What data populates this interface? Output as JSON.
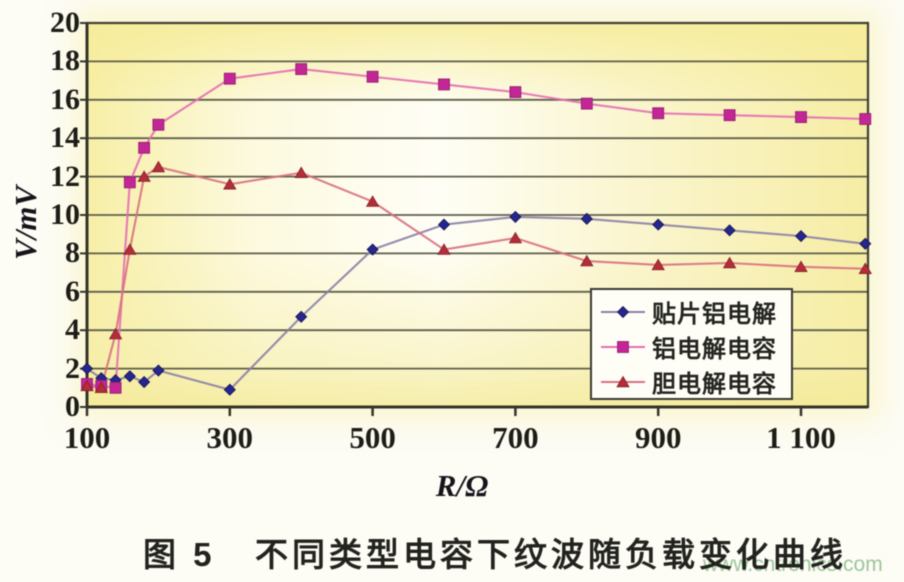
{
  "figure": {
    "caption": "图 5   不同类型电容下纹波随负载变化曲线",
    "watermark": "www.cntronics.com"
  },
  "chart_data": {
    "type": "line",
    "title": "",
    "xlabel": "R/Ω",
    "ylabel": "V/mV",
    "xlim": [
      100,
      1190
    ],
    "ylim": [
      0,
      20
    ],
    "x_ticks": [
      100,
      300,
      500,
      700,
      900,
      1100
    ],
    "x_tick_labels": [
      "100",
      "300",
      "500",
      "700",
      "900",
      "1 100"
    ],
    "y_ticks": [
      0,
      2,
      4,
      6,
      8,
      10,
      12,
      14,
      16,
      18,
      20
    ],
    "grid": "horizontal",
    "legend_position": "inside-lower-right",
    "plot_bg_color": "#faf5c0",
    "grid_color": "#5f5f4c",
    "series": [
      {
        "name": "贴片铝电解",
        "marker": "diamond",
        "marker_color": "#26268f",
        "line_color": "#8b7fa6",
        "points": [
          [
            100,
            2.0
          ],
          [
            120,
            1.5
          ],
          [
            140,
            1.4
          ],
          [
            160,
            1.6
          ],
          [
            180,
            1.3
          ],
          [
            200,
            1.9
          ],
          [
            300,
            0.9
          ],
          [
            400,
            4.7
          ],
          [
            500,
            8.2
          ],
          [
            600,
            9.5
          ],
          [
            700,
            9.9
          ],
          [
            800,
            9.8
          ],
          [
            900,
            9.5
          ],
          [
            1000,
            9.2
          ],
          [
            1100,
            8.9
          ],
          [
            1190,
            8.5
          ]
        ]
      },
      {
        "name": "铝电解电容",
        "marker": "square",
        "marker_color": "#c32795",
        "line_color": "#e46db2",
        "points": [
          [
            100,
            1.2
          ],
          [
            120,
            1.1
          ],
          [
            140,
            1.0
          ],
          [
            160,
            11.7
          ],
          [
            180,
            13.5
          ],
          [
            200,
            14.7
          ],
          [
            300,
            17.1
          ],
          [
            400,
            17.6
          ],
          [
            500,
            17.2
          ],
          [
            600,
            16.8
          ],
          [
            700,
            16.4
          ],
          [
            800,
            15.8
          ],
          [
            900,
            15.3
          ],
          [
            1000,
            15.2
          ],
          [
            1100,
            15.1
          ],
          [
            1190,
            15.0
          ]
        ]
      },
      {
        "name": "胆电解电容",
        "marker": "triangle",
        "marker_color": "#b52d38",
        "line_color": "#d96f80",
        "points": [
          [
            100,
            1.1
          ],
          [
            120,
            1.0
          ],
          [
            140,
            3.8
          ],
          [
            160,
            8.2
          ],
          [
            180,
            12.0
          ],
          [
            200,
            12.5
          ],
          [
            300,
            11.6
          ],
          [
            400,
            12.2
          ],
          [
            500,
            10.7
          ],
          [
            600,
            8.2
          ],
          [
            700,
            8.8
          ],
          [
            800,
            7.6
          ],
          [
            900,
            7.4
          ],
          [
            1000,
            7.5
          ],
          [
            1100,
            7.3
          ],
          [
            1190,
            7.2
          ]
        ]
      }
    ]
  }
}
